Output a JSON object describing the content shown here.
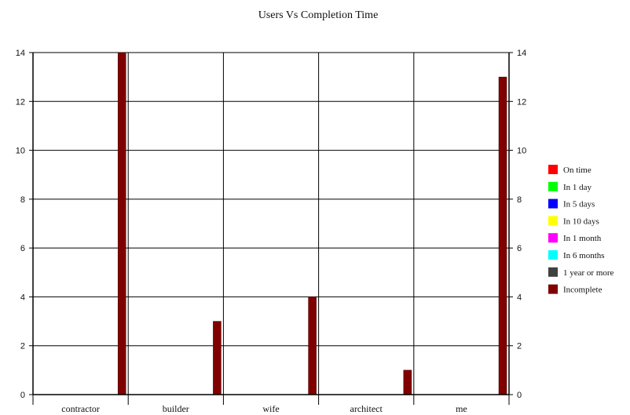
{
  "chart_data": {
    "type": "bar",
    "title": "Users Vs Completion Time",
    "categories": [
      "contractor",
      "builder",
      "wife",
      "architect",
      "me"
    ],
    "series": [
      {
        "name": "On time",
        "color": "#ff0000",
        "values": [
          0,
          0,
          0,
          0,
          0
        ]
      },
      {
        "name": "In 1 day",
        "color": "#00ff00",
        "values": [
          0,
          0,
          0,
          0,
          0
        ]
      },
      {
        "name": "In 5 days",
        "color": "#0000ff",
        "values": [
          0,
          0,
          0,
          0,
          0
        ]
      },
      {
        "name": "In 10 days",
        "color": "#ffff00",
        "values": [
          0,
          0,
          0,
          0,
          0
        ]
      },
      {
        "name": "In 1 month",
        "color": "#ff00ff",
        "values": [
          0,
          0,
          0,
          0,
          0
        ]
      },
      {
        "name": "In 6 months",
        "color": "#00ffff",
        "values": [
          0,
          0,
          0,
          0,
          0
        ]
      },
      {
        "name": "1 year or more",
        "color": "#404040",
        "values": [
          0,
          0,
          0,
          0,
          0
        ]
      },
      {
        "name": "Incomplete",
        "color": "#800000",
        "values": [
          14,
          3,
          4,
          1,
          13
        ]
      }
    ],
    "ylim": [
      0,
      14
    ],
    "yticks": [
      0,
      2,
      4,
      6,
      8,
      10,
      12,
      14
    ],
    "grid": true,
    "right_axis": true,
    "legend_position": "right"
  }
}
